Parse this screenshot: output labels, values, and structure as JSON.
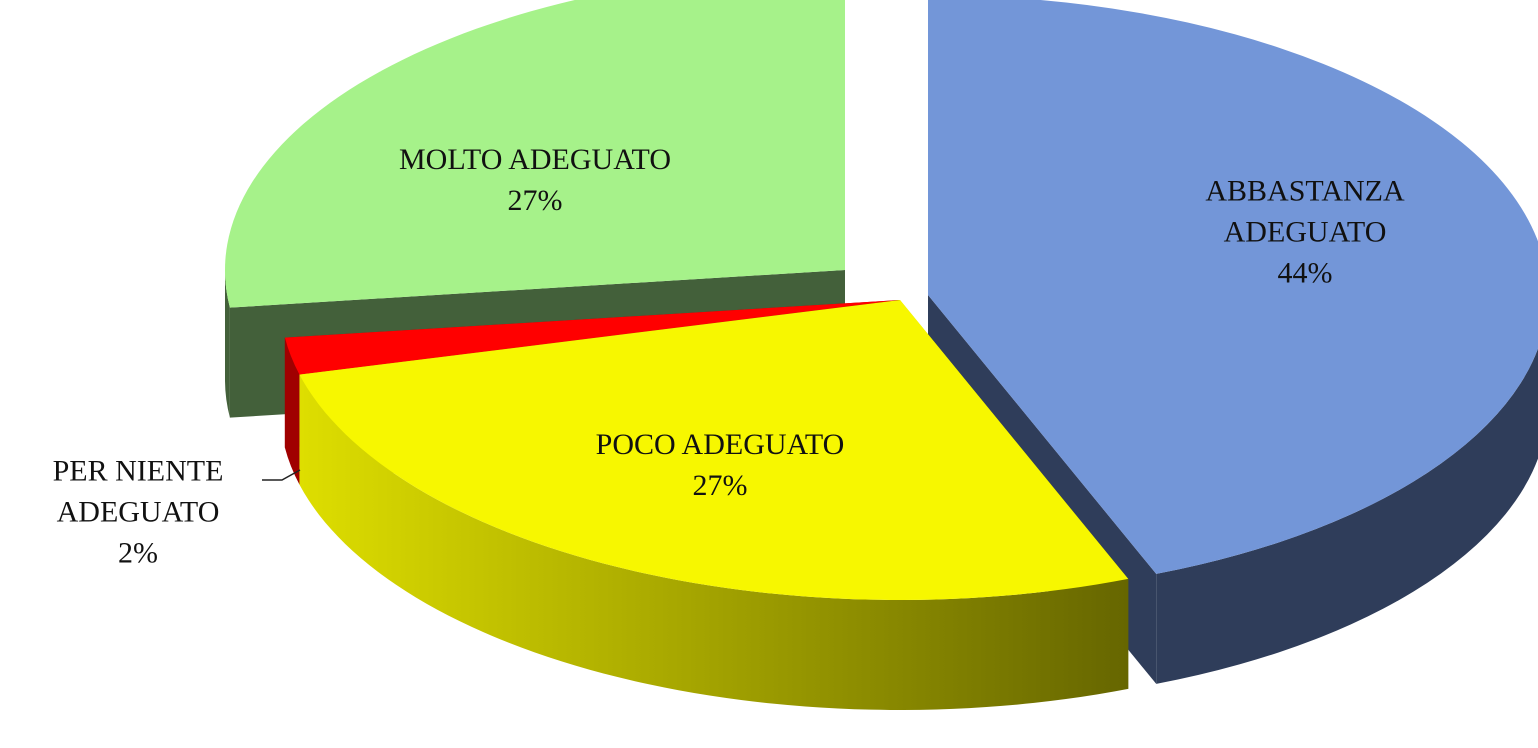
{
  "chart_data": {
    "type": "pie",
    "categories": [
      "ABBASTANZA ADEGUATO",
      "POCO ADEGUATO",
      "PER NIENTE ADEGUATO",
      "MOLTO ADEGUATO"
    ],
    "values": [
      44,
      27,
      2,
      27
    ],
    "value_labels": [
      "44%",
      "27%",
      "2%",
      "27%"
    ],
    "colors": [
      "#7396d8",
      "#f7f700",
      "#ff0000",
      "#a6f28a"
    ]
  }
}
